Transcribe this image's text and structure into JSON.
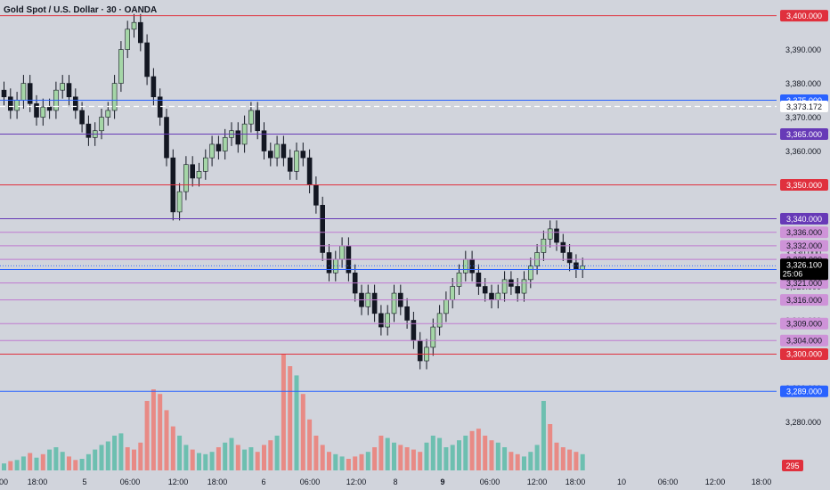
{
  "header": {
    "title": "Gold Spot / U.S. Dollar · 30 · OANDA"
  },
  "colors": {
    "background": "#d1d4dc",
    "up": "#a5d6a7",
    "down": "#131722",
    "vol_up": "#6dbfb0",
    "vol_down": "#e88a85",
    "red_line": "#e0303d",
    "blue_line": "#2962ff",
    "purple_line": "#673ab7",
    "violet_line": "#c07ad0",
    "last_price": "#000000"
  },
  "chart_data": {
    "type": "candlestick",
    "title": "Gold Spot / U.S. Dollar · 30 · OANDA",
    "ylim": [
      3273,
      3402
    ],
    "y_ticks": [
      "3,400.000",
      "3,390.000",
      "3,380.000",
      "3,370.000",
      "3,360.000",
      "3,350.000",
      "3,340.000",
      "3,330.000",
      "3,320.000",
      "3,310.000",
      "3,300.000",
      "3,290.000",
      "3,280.000"
    ],
    "x_tick_labels": [
      "00",
      "18:00",
      "5",
      "06:00",
      "12:00",
      "18:00",
      "6",
      "06:00",
      "12:00",
      "8",
      "9",
      "06:00",
      "12:00",
      "18:00",
      "10",
      "06:00",
      "12:00",
      "18:00"
    ],
    "closes": [
      3376,
      3372,
      3375,
      3380,
      3374,
      3370,
      3373,
      3372,
      3378,
      3380,
      3376,
      3372,
      3368,
      3364,
      3366,
      3370,
      3372,
      3380,
      3390,
      3396,
      3398,
      3392,
      3382,
      3376,
      3370,
      3358,
      3342,
      3348,
      3356,
      3352,
      3354,
      3358,
      3362,
      3360,
      3364,
      3366,
      3362,
      3368,
      3372,
      3366,
      3360,
      3358,
      3362,
      3358,
      3354,
      3360,
      3358,
      3350,
      3344,
      3330,
      3324,
      3328,
      3332,
      3324,
      3318,
      3314,
      3318,
      3312,
      3308,
      3312,
      3318,
      3314,
      3310,
      3304,
      3298,
      3302,
      3308,
      3312,
      3316,
      3320,
      3324,
      3328,
      3324,
      3320,
      3318,
      3316,
      3318,
      3322,
      3320,
      3318,
      3322,
      3326,
      3330,
      3334,
      3337,
      3333,
      3330,
      3327,
      3325,
      3326
    ],
    "volumes": [
      6,
      8,
      9,
      12,
      15,
      11,
      14,
      18,
      20,
      16,
      12,
      9,
      10,
      14,
      18,
      22,
      25,
      30,
      32,
      20,
      18,
      24,
      60,
      70,
      66,
      52,
      38,
      30,
      22,
      18,
      15,
      14,
      16,
      20,
      24,
      28,
      22,
      18,
      20,
      16,
      22,
      26,
      30,
      100,
      90,
      82,
      66,
      44,
      30,
      22,
      16,
      14,
      12,
      10,
      12,
      14,
      16,
      20,
      30,
      28,
      24,
      22,
      20,
      18,
      16,
      24,
      30,
      28,
      20,
      22,
      26,
      30,
      34,
      36,
      30,
      26,
      24,
      20,
      16,
      14,
      12,
      16,
      22,
      60,
      40,
      24,
      20,
      18,
      16,
      14
    ],
    "vol_dir": [
      "u",
      "d",
      "u",
      "u",
      "d",
      "u",
      "d",
      "u",
      "u",
      "u",
      "d",
      "d",
      "u",
      "u",
      "u",
      "u",
      "u",
      "u",
      "u",
      "d",
      "d",
      "d",
      "d",
      "d",
      "d",
      "d",
      "d",
      "u",
      "u",
      "d",
      "u",
      "u",
      "u",
      "d",
      "u",
      "u",
      "d",
      "u",
      "u",
      "d",
      "d",
      "d",
      "u",
      "d",
      "d",
      "u",
      "d",
      "d",
      "d",
      "d",
      "d",
      "u",
      "u",
      "d",
      "d",
      "d",
      "u",
      "d",
      "d",
      "u",
      "u",
      "d",
      "d",
      "d",
      "d",
      "u",
      "u",
      "u",
      "u",
      "u",
      "u",
      "u",
      "d",
      "d",
      "d",
      "d",
      "u",
      "u",
      "d",
      "d",
      "u",
      "u",
      "u",
      "u",
      "d",
      "d",
      "d",
      "d",
      "d",
      "u"
    ],
    "levels": [
      {
        "price": 3400,
        "label": "3,400.000",
        "color": "#e0303d",
        "badge": "#e0303d"
      },
      {
        "price": 3375,
        "label": "3,375.000",
        "color": "#2962ff",
        "badge": "#2962ff"
      },
      {
        "price": 3365,
        "label": "3,365.000",
        "color": "#673ab7",
        "badge": "#673ab7"
      },
      {
        "price": 3350,
        "label": "3,350.000",
        "color": "#e0303d",
        "badge": "#e0303d"
      },
      {
        "price": 3340,
        "label": "3,340.000",
        "color": "#673ab7",
        "badge": "#673ab7"
      },
      {
        "price": 3336,
        "label": "3,336.000",
        "color": "#c07ad0",
        "badge": "#ce93d8"
      },
      {
        "price": 3332,
        "label": "3,332.000",
        "color": "#c07ad0",
        "badge": "#ce93d8"
      },
      {
        "price": 3328,
        "label": "3,328.000",
        "color": "#c07ad0",
        "badge": "#ce93d8"
      },
      {
        "price": 3325,
        "label": "3,325.000",
        "color": "#2962ff",
        "badge": "#2962ff"
      },
      {
        "price": 3321,
        "label": "3,321.000",
        "color": "#c07ad0",
        "badge": "#ce93d8"
      },
      {
        "price": 3316,
        "label": "3,316.000",
        "color": "#c07ad0",
        "badge": "#ce93d8"
      },
      {
        "price": 3309,
        "label": "3,309.000",
        "color": "#c07ad0",
        "badge": "#ce93d8"
      },
      {
        "price": 3304,
        "label": "3,304.000",
        "color": "#c07ad0",
        "badge": "#ce93d8"
      },
      {
        "price": 3300,
        "label": "3,300.000",
        "color": "#e0303d",
        "badge": "#e0303d"
      },
      {
        "price": 3289,
        "label": "3,289.000",
        "color": "#2962ff",
        "badge": "#2962ff"
      }
    ],
    "dashed_level": {
      "price": 3373.172,
      "label": "3,373.172"
    },
    "last_price": {
      "price": 3326.1,
      "label": "3,326.100",
      "countdown": "25:06"
    },
    "volume_badge": "295"
  }
}
